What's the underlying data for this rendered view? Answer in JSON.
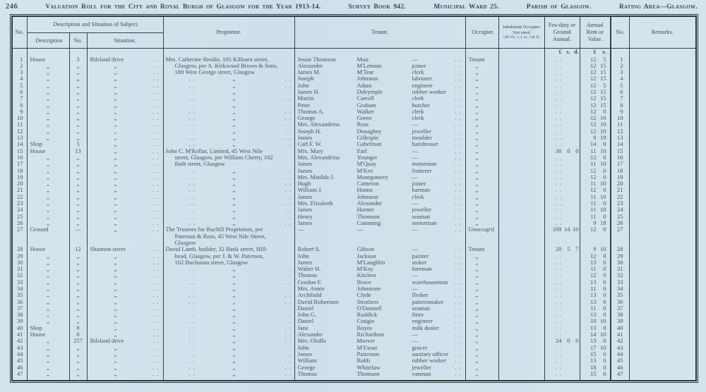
{
  "masthead": {
    "page_no": "246",
    "title": "Valuation Roll for the City and Royal Burgh of Glasgow for the Year 1913-14.",
    "survey_book": "Survey Book 942.",
    "ward": "Municipal Ward 25.",
    "parish": "Parish of Glasgow.",
    "rating_area": "Rating Area—Glasgow."
  },
  "table": {
    "marks": {
      "ditto": "„",
      "dots": ". ."
    },
    "header": {
      "col_no": "No.",
      "desc_sit": "Description and Situation of Subject.",
      "description": "Description",
      "desc_no": "No.",
      "situation": "Situation.",
      "proprietor": "Proprietor.",
      "tenant": "Tenant.",
      "occupier": "Occupier.",
      "inhab1": "Inhabitant Occupier",
      "inhab2": "Not rated",
      "inhab3": "(48 Vic. c.3, ss. 3 & 9)",
      "feu": "Feu-duty or Ground Annual.",
      "rent": "Annual Rent or Value.",
      "right_no": "No.",
      "remarks": "Remarks."
    },
    "money": {
      "feu": [
        "£",
        "s.",
        "d."
      ],
      "rent": [
        "£",
        "s."
      ]
    },
    "rows": [
      {
        "no": "1",
        "d": "House",
        "dn": "3",
        "s": "Bilsland drive",
        "pk": "a",
        "p": "Mrs. Catherine Brodie, 105 Killearn street,",
        "tf": "Jessie Thomson",
        "tl": "Muir",
        "to": "—",
        "o": "Tenant",
        "f": "",
        "r": "12 5"
      },
      {
        "no": "2",
        "d": "„",
        "dn": "„",
        "s": "„",
        "pk": "b",
        "p": "Glasgow, per A. Kirkwood Brown & Sons,",
        "tf": "Alexander",
        "tl": "M'Lennan",
        "to": "joiner",
        "o": "„",
        "f": "",
        "r": "12 15"
      },
      {
        "no": "3",
        "d": "„",
        "dn": "„",
        "s": "„",
        "pk": "b",
        "p": "180 West George street, Glasgow",
        "tf": "James M.",
        "tl": "M'Tear",
        "to": "clerk",
        "o": "„",
        "f": "",
        "r": "12 15"
      },
      {
        "no": "4",
        "d": "„",
        "dn": "„",
        "s": "„",
        "pk": "d",
        "p": "",
        "tf": "Joseph",
        "tl": "Johnston",
        "to": "labourer",
        "o": "„",
        "f": "",
        "r": "12 15"
      },
      {
        "no": "5",
        "d": "„",
        "dn": "„",
        "s": "„",
        "pk": "d",
        "p": "",
        "tf": "John",
        "tl": "Adam",
        "to": "engineer",
        "o": "„",
        "f": "",
        "r": "12 5"
      },
      {
        "no": "6",
        "d": "„",
        "dn": "„",
        "s": "„",
        "pk": "d",
        "p": "",
        "tf": "James H.",
        "tl": "Dalrymple",
        "to": "rubber worker",
        "o": "„",
        "f": "",
        "r": "12 15"
      },
      {
        "no": "7",
        "d": "„",
        "dn": "„",
        "s": "„",
        "pk": "d",
        "p": "",
        "tf": "Martin",
        "tl": "Carroll",
        "to": "clerk",
        "o": "„",
        "f": "",
        "r": "12 15"
      },
      {
        "no": "8",
        "d": "„",
        "dn": "„",
        "s": "„",
        "pk": "d",
        "p": "",
        "tf": "Peter",
        "tl": "Graham",
        "to": "butcher",
        "o": "„",
        "f": "",
        "r": "12 15"
      },
      {
        "no": "9",
        "d": "„",
        "dn": "„",
        "s": "„",
        "pk": "d",
        "p": "",
        "tf": "Thomas A.",
        "tl": "Walker",
        "to": "clerk",
        "o": "„",
        "f": "",
        "r": "12 0"
      },
      {
        "no": "10",
        "d": "„",
        "dn": "„",
        "s": "„",
        "pk": "d",
        "p": "",
        "tf": "George",
        "tl": "Green",
        "to": "clerk",
        "o": "„",
        "f": "",
        "r": "12 10"
      },
      {
        "no": "11",
        "d": "„",
        "dn": "„",
        "s": "„",
        "pk": "d",
        "p": "",
        "tf": "Mrs. Alexandrina",
        "tl": "Ross",
        "to": "—",
        "o": "„",
        "f": "",
        "r": "12 10"
      },
      {
        "no": "12",
        "d": "„",
        "dn": "„",
        "s": "„",
        "pk": "d",
        "p": "",
        "tf": "Joseph H.",
        "tl": "Donaghey",
        "to": "jeweller",
        "o": "„",
        "f": "",
        "r": "12 10"
      },
      {
        "no": "13",
        "d": "„",
        "dn": "„",
        "s": "„",
        "pk": "d",
        "p": "",
        "tf": "James",
        "tl": "Gillespie",
        "to": "moulder",
        "o": "„",
        "f": "",
        "r": "9 19"
      },
      {
        "no": "14",
        "d": "Shop",
        "dn": "5",
        "s": "„",
        "pk": "d",
        "p": "",
        "tf": "Carl F. W.",
        "tl": "Gabelman",
        "to": "hairdresser",
        "o": "„",
        "f": "",
        "r": "14 0"
      },
      {
        "no": "15",
        "d": "House",
        "dn": "13",
        "s": "„",
        "pk": "a",
        "p": "John C. M'Kellar, Limited, 45 West Nile",
        "tf": "Mrs. Mary",
        "tl": "Earl",
        "to": "—",
        "o": "„",
        "f": "30 0 0",
        "r": "11 10"
      },
      {
        "no": "16",
        "d": "„",
        "dn": "„",
        "s": "„",
        "pk": "b",
        "p": "street, Glasgow, per William Cherry, 102",
        "tf": "Mrs. Alexandrina",
        "tl": "Younger",
        "to": "—",
        "o": "„",
        "f": "",
        "r": "12 0"
      },
      {
        "no": "17",
        "d": "„",
        "dn": "„",
        "s": "„",
        "pk": "b",
        "p": "Bath street, Glasgow",
        "tf": "James",
        "tl": "M'Quay",
        "to": "motorman",
        "o": "„",
        "f": "",
        "r": "11 10"
      },
      {
        "no": "18",
        "d": "„",
        "dn": "„",
        "s": "„",
        "pk": "d",
        "p": "",
        "tf": "James",
        "tl": "M'Kee",
        "to": "fruiterer",
        "o": "„",
        "f": "",
        "r": "12 0"
      },
      {
        "no": "19",
        "d": "„",
        "dn": "„",
        "s": "„",
        "pk": "d",
        "p": "",
        "tf": "Mrs. Matilda J.",
        "tl": "Montgomery",
        "to": "—",
        "o": "„",
        "f": "",
        "r": "12 0"
      },
      {
        "no": "20",
        "d": "„",
        "dn": "„",
        "s": "„",
        "pk": "d",
        "p": "",
        "tf": "Hugh",
        "tl": "Cameron",
        "to": "joiner",
        "o": "„",
        "f": "",
        "r": "11 10"
      },
      {
        "no": "21",
        "d": "„",
        "dn": "„",
        "s": "„",
        "pk": "d",
        "p": "",
        "tf": "William J.",
        "tl": "Hanna",
        "to": "barman",
        "o": "„",
        "f": "",
        "r": "12 0"
      },
      {
        "no": "22",
        "d": "„",
        "dn": "„",
        "s": "„",
        "pk": "d",
        "p": "",
        "tf": "James",
        "tl": "Johnston",
        "to": "clerk",
        "o": "„",
        "f": "",
        "r": "11 10"
      },
      {
        "no": "23",
        "d": "„",
        "dn": "„",
        "s": "„",
        "pk": "d",
        "p": "",
        "tf": "Mrs. Elizabeth",
        "tl": "Alexander",
        "to": "—",
        "o": "„",
        "f": "",
        "r": "11 0"
      },
      {
        "no": "24",
        "d": "„",
        "dn": "„",
        "s": "„",
        "pk": "d",
        "p": "",
        "tf": "James",
        "tl": "Horner",
        "to": "jeweller",
        "o": "„",
        "f": "",
        "r": "11 10"
      },
      {
        "no": "25",
        "d": "„",
        "dn": "„",
        "s": "„",
        "pk": "d",
        "p": "",
        "tf": "Henry",
        "tl": "Thomson",
        "to": "seaman",
        "o": "„",
        "f": "",
        "r": "11 0"
      },
      {
        "no": "26",
        "d": "„",
        "dn": "„",
        "s": "„",
        "pk": "d",
        "p": "",
        "tf": "James",
        "tl": "Cumming",
        "to": "motorman",
        "o": "„",
        "f": "",
        "r": "9 18"
      },
      {
        "no": "27",
        "d": "Ground",
        "dn": "—",
        "s": "„",
        "pk": "m",
        "p": [
          "The Trustees for Ruchill Proprietors, per",
          "Paterson & Ross, 45 West Nile Street,",
          "Glasgow"
        ],
        "tf": "—",
        "tl": "—",
        "to": "—",
        "o": "Unoccup'd",
        "f": "109 14 10",
        "r": "12 0",
        "tall": true
      },
      {
        "no": "28",
        "d": "House",
        "dn": "12",
        "s": "Shannon street",
        "pk": "a",
        "p": "David Lamb, builder, 32 Bank street, Hill-",
        "tf": "Robert S.",
        "tl": "Gibson",
        "to": "—",
        "o": "Tenant",
        "f": "20 5 7",
        "r": "9 10"
      },
      {
        "no": "29",
        "d": "„",
        "dn": "„",
        "s": "„",
        "pk": "b",
        "p": "head, Glasgow, per J. & W. Paterson,",
        "tf": "John",
        "tl": "Jackson",
        "to": "painter",
        "o": "„",
        "f": "",
        "r": "12 0"
      },
      {
        "no": "30",
        "d": "„",
        "dn": "„",
        "s": "„",
        "pk": "b",
        "p": "162 Buchanan street, Glasgow",
        "tf": "James",
        "tl": "M'Laughlin",
        "to": "stoker",
        "o": "„",
        "f": "",
        "r": "13 0"
      },
      {
        "no": "31",
        "d": "„",
        "dn": "„",
        "s": "„",
        "pk": "d",
        "p": "",
        "tf": "Walter H.",
        "tl": "M'Kay",
        "to": "foreman",
        "o": "„",
        "f": "",
        "r": "11 0"
      },
      {
        "no": "32",
        "d": "„",
        "dn": "„",
        "s": "„",
        "pk": "d",
        "p": "",
        "tf": "Thomas",
        "tl": "Kitchen",
        "to": "—",
        "o": "„",
        "f": "",
        "r": "12 0"
      },
      {
        "no": "33",
        "d": "„",
        "dn": "„",
        "s": "„",
        "pk": "d",
        "p": "",
        "tf": "Gordon F.",
        "tl": "Bruce",
        "to": "warehouseman",
        "o": "„",
        "f": "",
        "r": "13 0"
      },
      {
        "no": "34",
        "d": "„",
        "dn": "„",
        "s": "„",
        "pk": "d",
        "p": "",
        "tf": "Mrs. Annie",
        "tl": "Johnstone",
        "to": "—",
        "o": "„",
        "f": "",
        "r": "11 0"
      },
      {
        "no": "35",
        "d": "„",
        "dn": "„",
        "s": "„",
        "pk": "d",
        "p": "",
        "tf": "Archibald",
        "tl": "Clyde",
        "to": "flesher",
        "o": "„",
        "f": "",
        "r": "13 0"
      },
      {
        "no": "36",
        "d": "„",
        "dn": "„",
        "s": "„",
        "pk": "d",
        "p": "",
        "tf": "David Robertson",
        "tl": "Struthers",
        "to": "patternmaker",
        "o": "„",
        "f": "",
        "r": "13 0"
      },
      {
        "no": "37",
        "d": "„",
        "dn": "„",
        "s": "„",
        "pk": "d",
        "p": "",
        "tf": "Daniel",
        "tl": "O'Donnell",
        "to": "seaman",
        "o": "„",
        "f": "",
        "r": "11 0"
      },
      {
        "no": "38",
        "d": "„",
        "dn": "„",
        "s": "„",
        "pk": "d",
        "p": "",
        "tf": "John G.",
        "tl": "Ruddick",
        "to": "fitter",
        "o": "„",
        "f": "",
        "r": "13 0"
      },
      {
        "no": "39",
        "d": "„",
        "dn": "„",
        "s": "„",
        "pk": "d",
        "p": "",
        "tf": "Daniel",
        "tl": "Craigie",
        "to": "engineer",
        "o": "„",
        "f": "",
        "r": "10 10"
      },
      {
        "no": "40",
        "d": "Shop",
        "dn": "8",
        "s": "„",
        "pk": "d",
        "p": "",
        "tf": "Jane",
        "tl": "Boyes",
        "to": "milk dealer",
        "o": "„",
        "f": "",
        "r": "13 0"
      },
      {
        "no": "41",
        "d": "House",
        "dn": "6",
        "s": "„",
        "pk": "d",
        "p": "",
        "tf": "Alexander",
        "tl": "Richardson",
        "to": "—",
        "o": "„",
        "f": "",
        "r": "14 10"
      },
      {
        "no": "42",
        "d": "„",
        "dn": "257",
        "s": "Bilsland drive",
        "pk": "d",
        "p": "",
        "tf": "Mrs. Oluffa",
        "tl": "Morver",
        "to": "—",
        "o": "„",
        "f": "24 0 0",
        "r": "13 0"
      },
      {
        "no": "43",
        "d": "„",
        "dn": "„",
        "s": "„",
        "pk": "d",
        "p": "",
        "tf": "John",
        "tl": "M'Ewan",
        "to": "grocer",
        "o": "„",
        "f": "",
        "r": "17 10"
      },
      {
        "no": "44",
        "d": "„",
        "dn": "„",
        "s": "„",
        "pk": "d",
        "p": "",
        "tf": "James",
        "tl": "Patterson",
        "to": "sanitary officer",
        "o": "„",
        "f": "",
        "r": "15 0"
      },
      {
        "no": "45",
        "d": "„",
        "dn": "„",
        "s": "„",
        "pk": "d",
        "p": "",
        "tf": "William",
        "tl": "Robb",
        "to": "rubber worker",
        "o": "„",
        "f": "",
        "r": "13 0"
      },
      {
        "no": "46",
        "d": "„",
        "dn": "„",
        "s": "„",
        "pk": "d",
        "p": "",
        "tf": "George",
        "tl": "Whitelaw",
        "to": "jeweller",
        "o": "„",
        "f": "",
        "r": "18 0"
      },
      {
        "no": "47",
        "d": "„",
        "dn": "„",
        "s": "„",
        "pk": "d",
        "p": "",
        "tf": "Thomas",
        "tl": "Thomson",
        "to": "vanman",
        "o": "„",
        "f": "",
        "r": "15 0"
      }
    ]
  }
}
